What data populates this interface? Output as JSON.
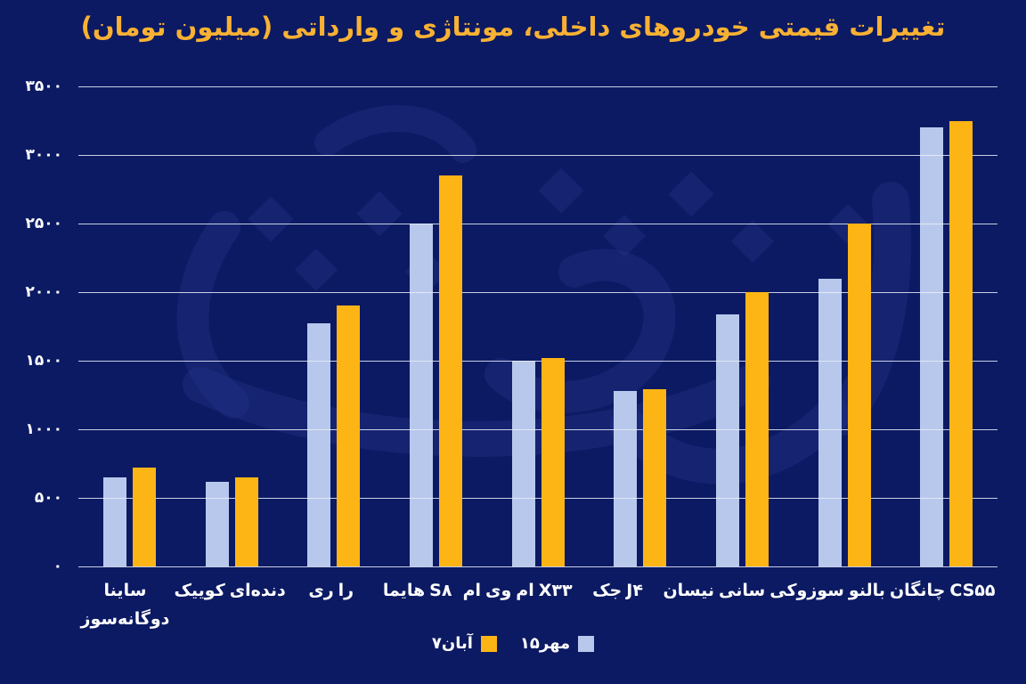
{
  "title": "تغییرات قیمتی خودروهای داخلی، مونتاژی و وارداتی (میلیون تومان)",
  "watermark_text": "دنیای اقتصاد",
  "colors": {
    "background": "#0c1a63",
    "title": "#f8b133",
    "bar_mehr15": "#b8c8ec",
    "bar_aban7": "#fdb515",
    "gridline": "#e9eef9",
    "axis_text": "#ffffff",
    "watermark": "#27398f"
  },
  "chart_data": {
    "type": "bar",
    "title": "تغییرات قیمتی خودروهای داخلی، مونتاژی و وارداتی (میلیون تومان)",
    "xlabel": "",
    "ylabel": "",
    "ylim": [
      0,
      3500
    ],
    "grid": "horizontal",
    "legend_position": "bottom",
    "categories": [
      "ساینا دوگانه‌سوز",
      "کوییک دنده‌ای",
      "ری را",
      "هایما S۸",
      "ام وی ام X۳۳",
      "جک J۴",
      "نیسان سانی",
      "سوزوکی بالنو",
      "چانگان CS۵۵"
    ],
    "categories_display": [
      [
        "ساینا",
        "دوگانه‌سوز"
      ],
      [
        "کوییک دنده‌ای"
      ],
      [
        "ری را"
      ],
      [
        "هایما S۸"
      ],
      [
        "ام وی ام X۳۳"
      ],
      [
        "جک J۴"
      ],
      [
        "نیسان سانی"
      ],
      [
        "سوزوکی بالنو"
      ],
      [
        "چانگان CS۵۵"
      ]
    ],
    "series": [
      {
        "name": "۱۵مهر",
        "color": "#b8c8ec",
        "values": [
          650,
          620,
          1770,
          2500,
          1500,
          1280,
          1840,
          2100,
          3200
        ]
      },
      {
        "name": "۷آبان",
        "color": "#fdb515",
        "values": [
          720,
          650,
          1900,
          2850,
          1520,
          1290,
          2000,
          2500,
          3250
        ]
      }
    ],
    "yticks": [
      {
        "value": 3500,
        "label": "۳۵۰۰"
      },
      {
        "value": 3000,
        "label": "۳۰۰۰"
      },
      {
        "value": 2500,
        "label": "۲۵۰۰"
      },
      {
        "value": 2000,
        "label": "۲۰۰۰"
      },
      {
        "value": 1500,
        "label": "۱۵۰۰"
      },
      {
        "value": 1000,
        "label": "۱۰۰۰"
      },
      {
        "value": 500,
        "label": "۵۰۰"
      },
      {
        "value": 0,
        "label": "۰"
      }
    ]
  },
  "legend": {
    "items": [
      {
        "label": "۷آبان",
        "color": "#fdb515"
      },
      {
        "label": "۱۵مهر",
        "color": "#b8c8ec"
      }
    ]
  }
}
